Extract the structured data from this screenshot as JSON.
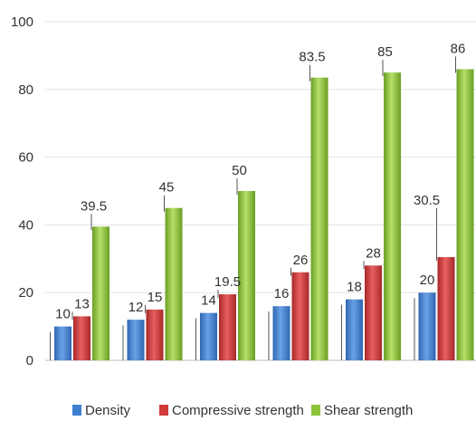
{
  "chart_data": {
    "type": "bar",
    "categories": [
      "",
      "",
      "",
      "",
      "",
      ""
    ],
    "series": [
      {
        "name": "Density",
        "values": [
          10,
          12,
          14,
          16,
          18,
          20
        ],
        "color": "#3f7fd1"
      },
      {
        "name": "Compressive strength",
        "values": [
          13,
          15,
          19.5,
          26,
          28,
          30.5
        ],
        "color": "#d03a3a"
      },
      {
        "name": "Shear strength",
        "values": [
          39.5,
          45,
          50,
          83.5,
          85,
          86
        ],
        "color": "#8cc43a"
      }
    ],
    "data_labels": [
      [
        "10",
        "12",
        "14",
        "16",
        "18",
        "20"
      ],
      [
        "13",
        "15",
        "19.5",
        "26",
        "28",
        "30.5"
      ],
      [
        "39.5",
        "45",
        "50",
        "83.5",
        "85",
        "86"
      ]
    ],
    "y_ticks": [
      "0",
      "20",
      "40",
      "60",
      "80",
      "100"
    ],
    "ylim": [
      0,
      100
    ],
    "grid": true,
    "legend_position": "bottom"
  }
}
